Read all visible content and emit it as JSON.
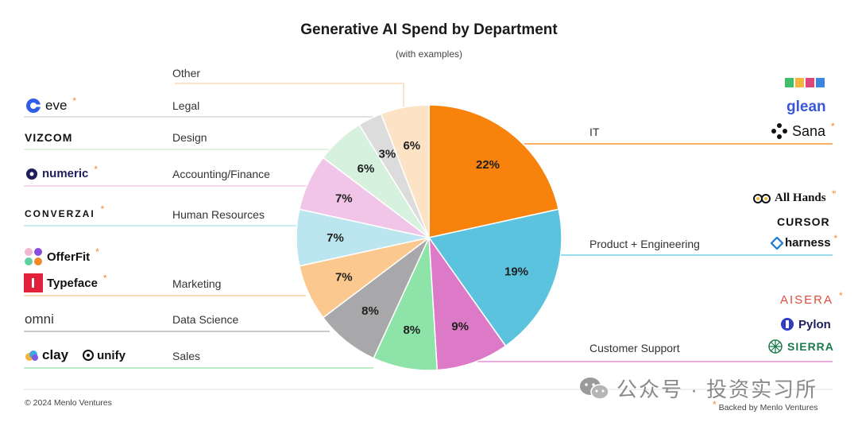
{
  "chart_data": {
    "type": "pie",
    "title": "Generative AI Spend by Department",
    "subtitle": "(with examples)",
    "slices": [
      {
        "label": "IT",
        "value": 22,
        "value_label": "22%",
        "color": "#f7820c"
      },
      {
        "label": "Product + Engineering",
        "value": 19,
        "value_label": "19%",
        "color": "#5bc3dd"
      },
      {
        "label": "Customer Support",
        "value": 9,
        "value_label": "9%",
        "color": "#dd7ac8"
      },
      {
        "label": "Sales",
        "value": 8,
        "value_label": "8%",
        "color": "#8ee3a9"
      },
      {
        "label": "Data Science",
        "value": 8,
        "value_label": "8%",
        "color": "#a8a8aa"
      },
      {
        "label": "Marketing",
        "value": 7,
        "value_label": "7%",
        "color": "#fbc88f"
      },
      {
        "label": "Human Resources",
        "value": 7,
        "value_label": "7%",
        "color": "#bce6ef"
      },
      {
        "label": "Accounting/Finance",
        "value": 7,
        "value_label": "7%",
        "color": "#f1c5e7"
      },
      {
        "label": "Design",
        "value": 6,
        "value_label": "6%",
        "color": "#d6f1de"
      },
      {
        "label": "Legal",
        "value": 3,
        "value_label": "3%",
        "color": "#dcdcdc"
      },
      {
        "label": "Other",
        "value": 6,
        "value_label": "6%",
        "color": "#fde3c6"
      }
    ]
  },
  "left_labels": {
    "other": "Other",
    "legal": "Legal",
    "design": "Design",
    "accounting": "Accounting/Finance",
    "hr": "Human Resources",
    "marketing": "Marketing",
    "data_science": "Data Science",
    "sales": "Sales"
  },
  "right_labels": {
    "it": "IT",
    "product": "Product + Engineering",
    "support": "Customer Support"
  },
  "logos": {
    "eve": "eve",
    "vizcom": "VIZCOM",
    "numeric": "numeric",
    "converzai": "CONVERZAI",
    "offerfit": "OfferFit",
    "typeface": "Typeface",
    "omni": "omni",
    "clay": "clay",
    "unify": "unify",
    "glean": "glean",
    "sana": "Sana",
    "allhands": "All Hands",
    "cursor": "CURSOR",
    "harness": "harness",
    "aisera": "AISERA",
    "pylon": "Pylon",
    "sierra": "SIERRA"
  },
  "star": "*",
  "footer": {
    "copyright": "© 2024 Menlo Ventures",
    "backed": "Backed by Menlo Ventures"
  },
  "watermark": "公众号 · 投资实习所"
}
